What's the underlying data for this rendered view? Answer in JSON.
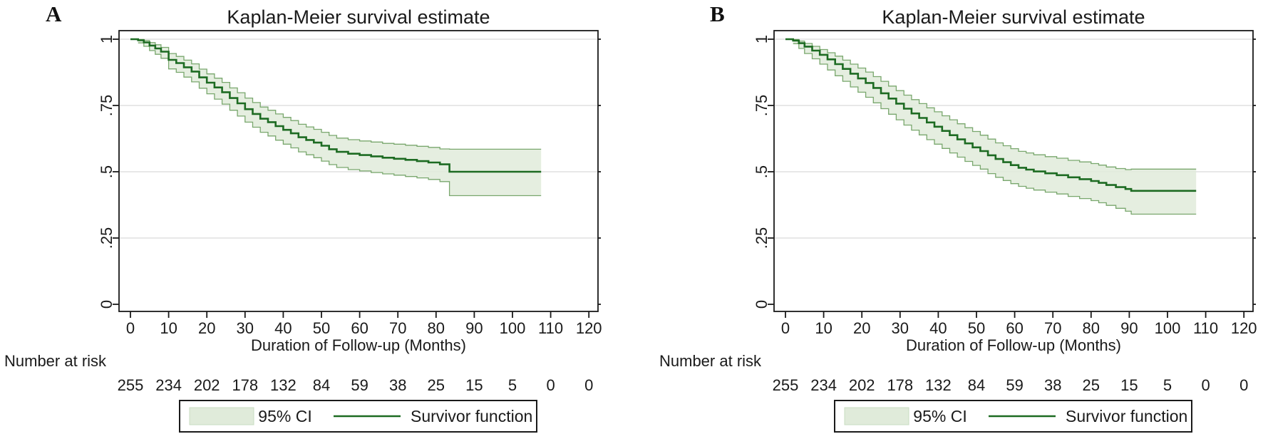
{
  "figure": {
    "background": "#ffffff"
  },
  "chart_data": [
    {
      "type": "line",
      "chart_style": "kaplan-meier-step",
      "panel_label": "A",
      "title": "Kaplan-Meier survival estimate",
      "xlabel": "Duration of Follow-up (Months)",
      "xlim": [
        0,
        120
      ],
      "ylim": [
        0,
        1
      ],
      "grid": true,
      "x_ticks": [
        0,
        10,
        20,
        30,
        40,
        50,
        60,
        70,
        80,
        90,
        100,
        110,
        120
      ],
      "y_ticks": [
        0,
        0.25,
        0.5,
        0.75,
        1
      ],
      "y_tick_labels": [
        "0",
        ".25",
        ".5",
        ".75",
        "1"
      ],
      "risk_label": "Number at risk",
      "risk_counts": [
        255,
        234,
        202,
        178,
        132,
        84,
        59,
        38,
        25,
        15,
        5,
        0,
        0
      ],
      "legend": [
        {
          "label": "95% CI",
          "swatch": "fill"
        },
        {
          "label": "Survivor function",
          "swatch": "line"
        }
      ],
      "legend_position": "bottom-center",
      "colors": {
        "survivor": "#1d6b22",
        "ci_fill": "#e0ebda",
        "ci_edge": "#79a76d",
        "ci_swatch_edge": "#c9dcc2",
        "grid": "#d9d9d9",
        "frame": "#1a1a1a"
      },
      "survival_steps": [
        [
          0,
          1.0,
          1.0,
          1.0
        ],
        [
          2,
          0.996,
          0.986,
          0.999
        ],
        [
          3.5,
          0.988,
          0.973,
          0.995
        ],
        [
          5,
          0.976,
          0.957,
          0.987
        ],
        [
          6.5,
          0.965,
          0.943,
          0.979
        ],
        [
          8,
          0.953,
          0.928,
          0.969
        ],
        [
          10,
          0.922,
          0.888,
          0.946
        ],
        [
          12,
          0.91,
          0.875,
          0.935
        ],
        [
          14,
          0.894,
          0.857,
          0.921
        ],
        [
          16,
          0.878,
          0.839,
          0.907
        ],
        [
          18,
          0.856,
          0.815,
          0.887
        ],
        [
          20,
          0.836,
          0.794,
          0.869
        ],
        [
          22,
          0.818,
          0.774,
          0.853
        ],
        [
          24,
          0.8,
          0.755,
          0.837
        ],
        [
          26,
          0.778,
          0.732,
          0.816
        ],
        [
          28,
          0.758,
          0.71,
          0.798
        ],
        [
          30,
          0.736,
          0.687,
          0.778
        ],
        [
          32,
          0.718,
          0.668,
          0.761
        ],
        [
          34,
          0.7,
          0.649,
          0.744
        ],
        [
          36,
          0.687,
          0.635,
          0.732
        ],
        [
          38,
          0.672,
          0.619,
          0.718
        ],
        [
          40,
          0.658,
          0.604,
          0.705
        ],
        [
          42,
          0.645,
          0.59,
          0.693
        ],
        [
          44,
          0.63,
          0.575,
          0.679
        ],
        [
          46,
          0.62,
          0.564,
          0.669
        ],
        [
          48,
          0.61,
          0.553,
          0.66
        ],
        [
          50,
          0.598,
          0.54,
          0.649
        ],
        [
          52,
          0.585,
          0.527,
          0.637
        ],
        [
          54,
          0.575,
          0.516,
          0.627
        ],
        [
          57,
          0.568,
          0.508,
          0.621
        ],
        [
          60,
          0.563,
          0.503,
          0.616
        ],
        [
          63,
          0.558,
          0.497,
          0.612
        ],
        [
          66,
          0.553,
          0.492,
          0.607
        ],
        [
          69,
          0.549,
          0.487,
          0.604
        ],
        [
          72,
          0.545,
          0.482,
          0.6
        ],
        [
          75,
          0.54,
          0.477,
          0.596
        ],
        [
          78,
          0.535,
          0.471,
          0.592
        ],
        [
          81,
          0.528,
          0.463,
          0.586
        ],
        [
          83.5,
          0.5,
          0.41,
          0.585
        ],
        [
          107.5,
          0.5,
          0.41,
          0.585
        ]
      ],
      "layout": {
        "x_offset": 0
      }
    },
    {
      "type": "line",
      "chart_style": "kaplan-meier-step",
      "panel_label": "B",
      "title": "Kaplan-Meier survival estimate",
      "xlabel": "Duration of Follow-up (Months)",
      "xlim": [
        0,
        120
      ],
      "ylim": [
        0,
        1
      ],
      "grid": true,
      "x_ticks": [
        0,
        10,
        20,
        30,
        40,
        50,
        60,
        70,
        80,
        90,
        100,
        110,
        120
      ],
      "y_ticks": [
        0,
        0.25,
        0.5,
        0.75,
        1
      ],
      "y_tick_labels": [
        "0",
        ".25",
        ".5",
        ".75",
        "1"
      ],
      "risk_label": "Number at risk",
      "risk_counts": [
        255,
        234,
        202,
        178,
        132,
        84,
        59,
        38,
        25,
        15,
        5,
        0,
        0
      ],
      "legend": [
        {
          "label": "95% CI",
          "swatch": "fill"
        },
        {
          "label": "Survivor function",
          "swatch": "line"
        }
      ],
      "legend_position": "bottom-center",
      "colors": {
        "survivor": "#1d6b22",
        "ci_fill": "#e0ebda",
        "ci_edge": "#79a76d",
        "ci_swatch_edge": "#c9dcc2",
        "grid": "#d9d9d9",
        "frame": "#1a1a1a"
      },
      "survival_steps": [
        [
          0,
          1.0,
          1.0,
          1.0
        ],
        [
          2,
          0.995,
          0.983,
          0.999
        ],
        [
          3.5,
          0.985,
          0.965,
          0.993
        ],
        [
          5,
          0.972,
          0.946,
          0.984
        ],
        [
          7,
          0.957,
          0.926,
          0.973
        ],
        [
          9,
          0.941,
          0.906,
          0.961
        ],
        [
          11,
          0.924,
          0.884,
          0.949
        ],
        [
          13,
          0.906,
          0.862,
          0.936
        ],
        [
          15,
          0.888,
          0.841,
          0.921
        ],
        [
          17,
          0.87,
          0.82,
          0.906
        ],
        [
          19,
          0.852,
          0.8,
          0.891
        ],
        [
          21,
          0.835,
          0.781,
          0.876
        ],
        [
          23,
          0.816,
          0.76,
          0.859
        ],
        [
          25,
          0.796,
          0.738,
          0.841
        ],
        [
          27,
          0.776,
          0.717,
          0.823
        ],
        [
          29,
          0.757,
          0.696,
          0.806
        ],
        [
          31,
          0.738,
          0.676,
          0.789
        ],
        [
          33,
          0.72,
          0.657,
          0.772
        ],
        [
          35,
          0.703,
          0.639,
          0.757
        ],
        [
          37,
          0.686,
          0.621,
          0.741
        ],
        [
          39,
          0.67,
          0.604,
          0.726
        ],
        [
          41,
          0.654,
          0.588,
          0.711
        ],
        [
          43,
          0.638,
          0.571,
          0.696
        ],
        [
          45,
          0.622,
          0.555,
          0.681
        ],
        [
          47,
          0.607,
          0.539,
          0.666
        ],
        [
          49,
          0.592,
          0.524,
          0.652
        ],
        [
          51,
          0.578,
          0.51,
          0.638
        ],
        [
          53,
          0.562,
          0.493,
          0.623
        ],
        [
          55,
          0.548,
          0.479,
          0.609
        ],
        [
          57,
          0.536,
          0.467,
          0.598
        ],
        [
          59,
          0.525,
          0.455,
          0.587
        ],
        [
          61,
          0.515,
          0.445,
          0.577
        ],
        [
          63,
          0.508,
          0.438,
          0.571
        ],
        [
          65,
          0.501,
          0.431,
          0.564
        ],
        [
          68,
          0.494,
          0.423,
          0.557
        ],
        [
          71,
          0.487,
          0.416,
          0.551
        ],
        [
          74,
          0.479,
          0.407,
          0.543
        ],
        [
          77,
          0.472,
          0.399,
          0.537
        ],
        [
          80,
          0.465,
          0.391,
          0.531
        ],
        [
          82,
          0.458,
          0.383,
          0.525
        ],
        [
          84,
          0.45,
          0.373,
          0.518
        ],
        [
          86.5,
          0.442,
          0.362,
          0.512
        ],
        [
          89,
          0.435,
          0.351,
          0.508
        ],
        [
          90.5,
          0.428,
          0.34,
          0.51
        ],
        [
          107.5,
          0.428,
          0.34,
          0.51
        ]
      ],
      "layout": {
        "x_offset": 33
      }
    }
  ]
}
